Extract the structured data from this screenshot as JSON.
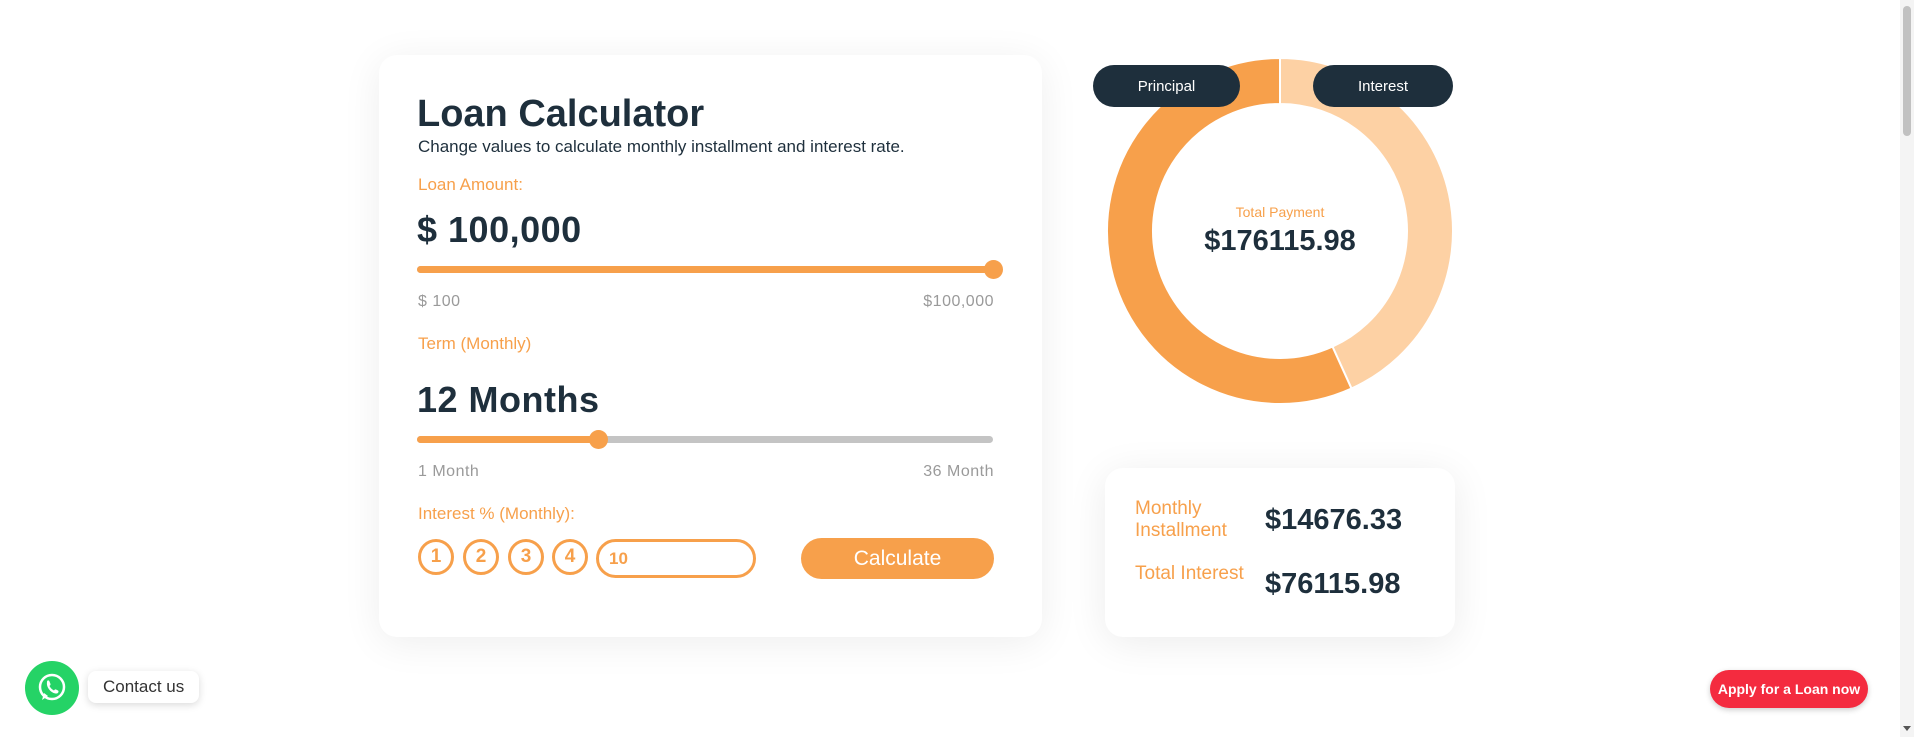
{
  "calculator": {
    "title": "Loan Calculator",
    "subtitle": "Change values to calculate monthly installment and interest rate.",
    "loan_amount_label": "Loan Amount:",
    "loan_amount_value": "$ 100,000",
    "loan_amount_slider": {
      "fraction": 1.0,
      "min_label": "$ 100",
      "max_label": "$100,000"
    },
    "term_label": "Term (Monthly)",
    "term_value": "12 Months",
    "term_slider": {
      "fraction": 0.315,
      "min_label": "1 Month",
      "max_label": "36 Month"
    },
    "interest_label": "Interest % (Monthly):",
    "rate_options": [
      "1",
      "2",
      "3",
      "4"
    ],
    "rate_input_value": "10",
    "calculate_label": "Calculate"
  },
  "chart_data": {
    "type": "pie",
    "style": "donut",
    "categories": [
      "Principal",
      "Interest"
    ],
    "values": [
      100000,
      76115.98
    ],
    "colors": [
      "#f7a04b",
      "#fdd1a4"
    ],
    "center_label": "Total Payment",
    "center_value": "$176115.98",
    "legend_position": "top"
  },
  "summary": {
    "monthly_installment_label": "Monthly Installment",
    "monthly_installment_value": "$14676.33",
    "total_interest_label": "Total Interest",
    "total_interest_value": "$76115.98"
  },
  "floating": {
    "contact_label": "Contact us",
    "apply_label": "Apply for a Loan now",
    "whatsapp_icon": "whatsapp-icon"
  },
  "colors": {
    "accent": "#f7a04b",
    "dark": "#1e2f3c",
    "apply": "#f42b3f",
    "whatsapp": "#25d366"
  }
}
